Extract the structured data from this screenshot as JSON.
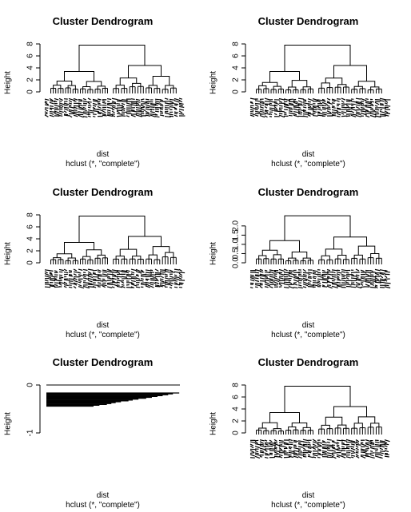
{
  "chart_data": [
    {
      "type": "dendrogram",
      "title": "Cluster Dendrogram",
      "ylabel": "Height",
      "xlabel": "dist",
      "sub": "hclust (*, \"complete\")",
      "ylim": [
        0,
        8
      ],
      "yticks": [
        "0",
        "2",
        "4",
        "6",
        "8"
      ],
      "root_height": 7.8,
      "child_heights": [
        3.4,
        4.4
      ]
    },
    {
      "type": "dendrogram",
      "title": "Cluster Dendrogram",
      "ylabel": "Height",
      "xlabel": "dist",
      "sub": "hclust (*, \"complete\")",
      "ylim": [
        0,
        8
      ],
      "yticks": [
        "0",
        "2",
        "4",
        "6",
        "8"
      ],
      "root_height": 7.8,
      "child_heights": [
        3.4,
        4.4
      ]
    },
    {
      "type": "dendrogram",
      "title": "Cluster Dendrogram",
      "ylabel": "Height",
      "xlabel": "dist",
      "sub": "hclust (*, \"complete\")",
      "ylim": [
        0,
        8
      ],
      "yticks": [
        "0",
        "2",
        "4",
        "6",
        "8"
      ],
      "root_height": 7.8,
      "child_heights": [
        3.4,
        4.4
      ]
    },
    {
      "type": "dendrogram",
      "title": "Cluster Dendrogram",
      "ylabel": "Height",
      "xlabel": "dist",
      "sub": "hclust (*, \"complete\")",
      "ylim": [
        0,
        2.6
      ],
      "yticks": [
        "0.0",
        "0.5",
        "1.0",
        "1.5",
        "2.0"
      ],
      "root_height": 2.55,
      "child_heights": [
        1.2,
        1.4
      ]
    },
    {
      "type": "dendrogram",
      "title": "Cluster Dendrogram",
      "ylabel": "Height",
      "xlabel": "dist",
      "sub": "hclust (*, \"complete\")",
      "ylim": [
        -1,
        0
      ],
      "yticks": [
        "-1",
        "0"
      ],
      "root_height": 0,
      "child_heights": [
        0,
        0
      ],
      "degenerate": true
    },
    {
      "type": "dendrogram",
      "title": "Cluster Dendrogram",
      "ylabel": "Height",
      "xlabel": "dist",
      "sub": "hclust (*, \"complete\")",
      "ylim": [
        0,
        8
      ],
      "yticks": [
        "0",
        "2",
        "4",
        "6",
        "8"
      ],
      "root_height": 7.8,
      "child_heights": [
        3.4,
        4.4
      ]
    }
  ]
}
